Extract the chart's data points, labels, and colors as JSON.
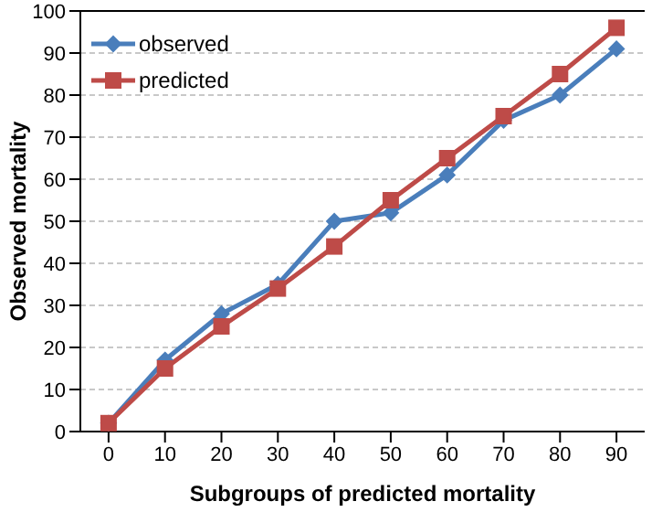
{
  "chart_data": {
    "type": "line",
    "xlabel": "Subgroups of predicted mortality",
    "ylabel": "Observed mortality",
    "categories": [
      "0",
      "10",
      "20",
      "30",
      "40",
      "50",
      "60",
      "70",
      "80",
      "90"
    ],
    "series": [
      {
        "name": "observed",
        "color": "#4a7ebb",
        "marker": "diamond",
        "values": [
          2,
          17,
          28,
          35,
          50,
          52,
          61,
          74,
          80,
          91
        ]
      },
      {
        "name": "predicted",
        "color": "#be4b48",
        "marker": "square",
        "values": [
          2,
          15,
          25,
          34,
          44,
          55,
          65,
          75,
          85,
          96
        ]
      }
    ],
    "ylim": [
      0,
      100
    ],
    "yticks": [
      0,
      10,
      20,
      30,
      40,
      50,
      60,
      70,
      80,
      90,
      100
    ],
    "grid": "y",
    "legend": "top left",
    "line_style": "solid"
  }
}
